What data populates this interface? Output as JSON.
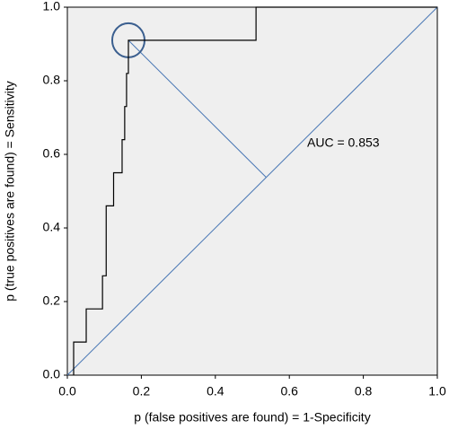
{
  "chart_data": {
    "type": "line",
    "xlabel": "p (false positives are found) = 1-Specificity",
    "ylabel": "p (true positives are found) = Sensitivity",
    "annotation": "AUC = 0.853",
    "x": [
      0.017,
      0.017,
      0.051,
      0.051,
      0.095,
      0.095,
      0.105,
      0.105,
      0.125,
      0.125,
      0.148,
      0.148,
      0.155,
      0.155,
      0.16,
      0.16,
      0.165,
      0.165,
      0.51,
      0.51,
      1.0
    ],
    "values": [
      0,
      0.09,
      0.09,
      0.18,
      0.18,
      0.27,
      0.27,
      0.46,
      0.46,
      0.55,
      0.55,
      0.64,
      0.64,
      0.73,
      0.73,
      0.82,
      0.82,
      0.91,
      0.91,
      1.0,
      1.0
    ],
    "color": "#000000",
    "reference_color": "#4a78b5",
    "xlim": [
      0,
      1
    ],
    "ylim": [
      0,
      1
    ],
    "xticks": [
      {
        "value": 0,
        "label": "0.0"
      },
      0.2,
      0.4,
      0.6,
      0.8,
      {
        "value": 1,
        "label": "1.0"
      }
    ],
    "yticks": [
      {
        "value": 0,
        "label": "0.0"
      },
      0.2,
      0.4,
      0.6,
      0.8,
      {
        "value": 1,
        "label": "1.0"
      }
    ]
  }
}
